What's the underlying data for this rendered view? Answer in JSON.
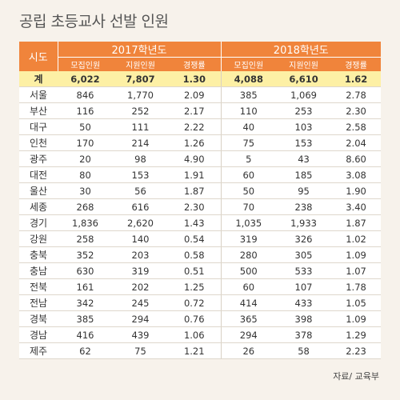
{
  "title": "공립 초등교사 선발 인원",
  "source": "자료/ 교육부",
  "chart_data": {
    "type": "table",
    "title": "공립 초등교사 선발 인원",
    "corner_header": "시도",
    "years": [
      "2017학년도",
      "2018학년도"
    ],
    "sub_headers": [
      "모집인원",
      "지원인원",
      "경쟁률",
      "모집인원",
      "지원인원",
      "경쟁률"
    ],
    "total": {
      "region": "계",
      "values": [
        "6,022",
        "7,807",
        "1.30",
        "4,088",
        "6,610",
        "1.62"
      ]
    },
    "rows": [
      {
        "region": "서울",
        "values": [
          "846",
          "1,770",
          "2.09",
          "385",
          "1,069",
          "2.78"
        ]
      },
      {
        "region": "부산",
        "values": [
          "116",
          "252",
          "2.17",
          "110",
          "253",
          "2.30"
        ]
      },
      {
        "region": "대구",
        "values": [
          "50",
          "111",
          "2.22",
          "40",
          "103",
          "2.58"
        ]
      },
      {
        "region": "인천",
        "values": [
          "170",
          "214",
          "1.26",
          "75",
          "153",
          "2.04"
        ]
      },
      {
        "region": "광주",
        "values": [
          "20",
          "98",
          "4.90",
          "5",
          "43",
          "8.60"
        ]
      },
      {
        "region": "대전",
        "values": [
          "80",
          "153",
          "1.91",
          "60",
          "185",
          "3.08"
        ]
      },
      {
        "region": "울산",
        "values": [
          "30",
          "56",
          "1.87",
          "50",
          "95",
          "1.90"
        ]
      },
      {
        "region": "세종",
        "values": [
          "268",
          "616",
          "2.30",
          "70",
          "238",
          "3.40"
        ]
      },
      {
        "region": "경기",
        "values": [
          "1,836",
          "2,620",
          "1.43",
          "1,035",
          "1,933",
          "1.87"
        ]
      },
      {
        "region": "강원",
        "values": [
          "258",
          "140",
          "0.54",
          "319",
          "326",
          "1.02"
        ]
      },
      {
        "region": "충북",
        "values": [
          "352",
          "203",
          "0.58",
          "280",
          "305",
          "1.09"
        ]
      },
      {
        "region": "충남",
        "values": [
          "630",
          "319",
          "0.51",
          "500",
          "533",
          "1.07"
        ]
      },
      {
        "region": "전북",
        "values": [
          "161",
          "202",
          "1.25",
          "60",
          "107",
          "1.78"
        ]
      },
      {
        "region": "전남",
        "values": [
          "342",
          "245",
          "0.72",
          "414",
          "433",
          "1.05"
        ]
      },
      {
        "region": "경북",
        "values": [
          "385",
          "294",
          "0.76",
          "365",
          "398",
          "1.09"
        ]
      },
      {
        "region": "경남",
        "values": [
          "416",
          "439",
          "1.06",
          "294",
          "378",
          "1.29"
        ]
      },
      {
        "region": "제주",
        "values": [
          "62",
          "75",
          "1.21",
          "26",
          "58",
          "2.23"
        ]
      }
    ]
  },
  "colors": {
    "header_bg": "#f0843b",
    "total_row_bg": "#fdf0a5",
    "page_bg": "#f7f2eb"
  }
}
